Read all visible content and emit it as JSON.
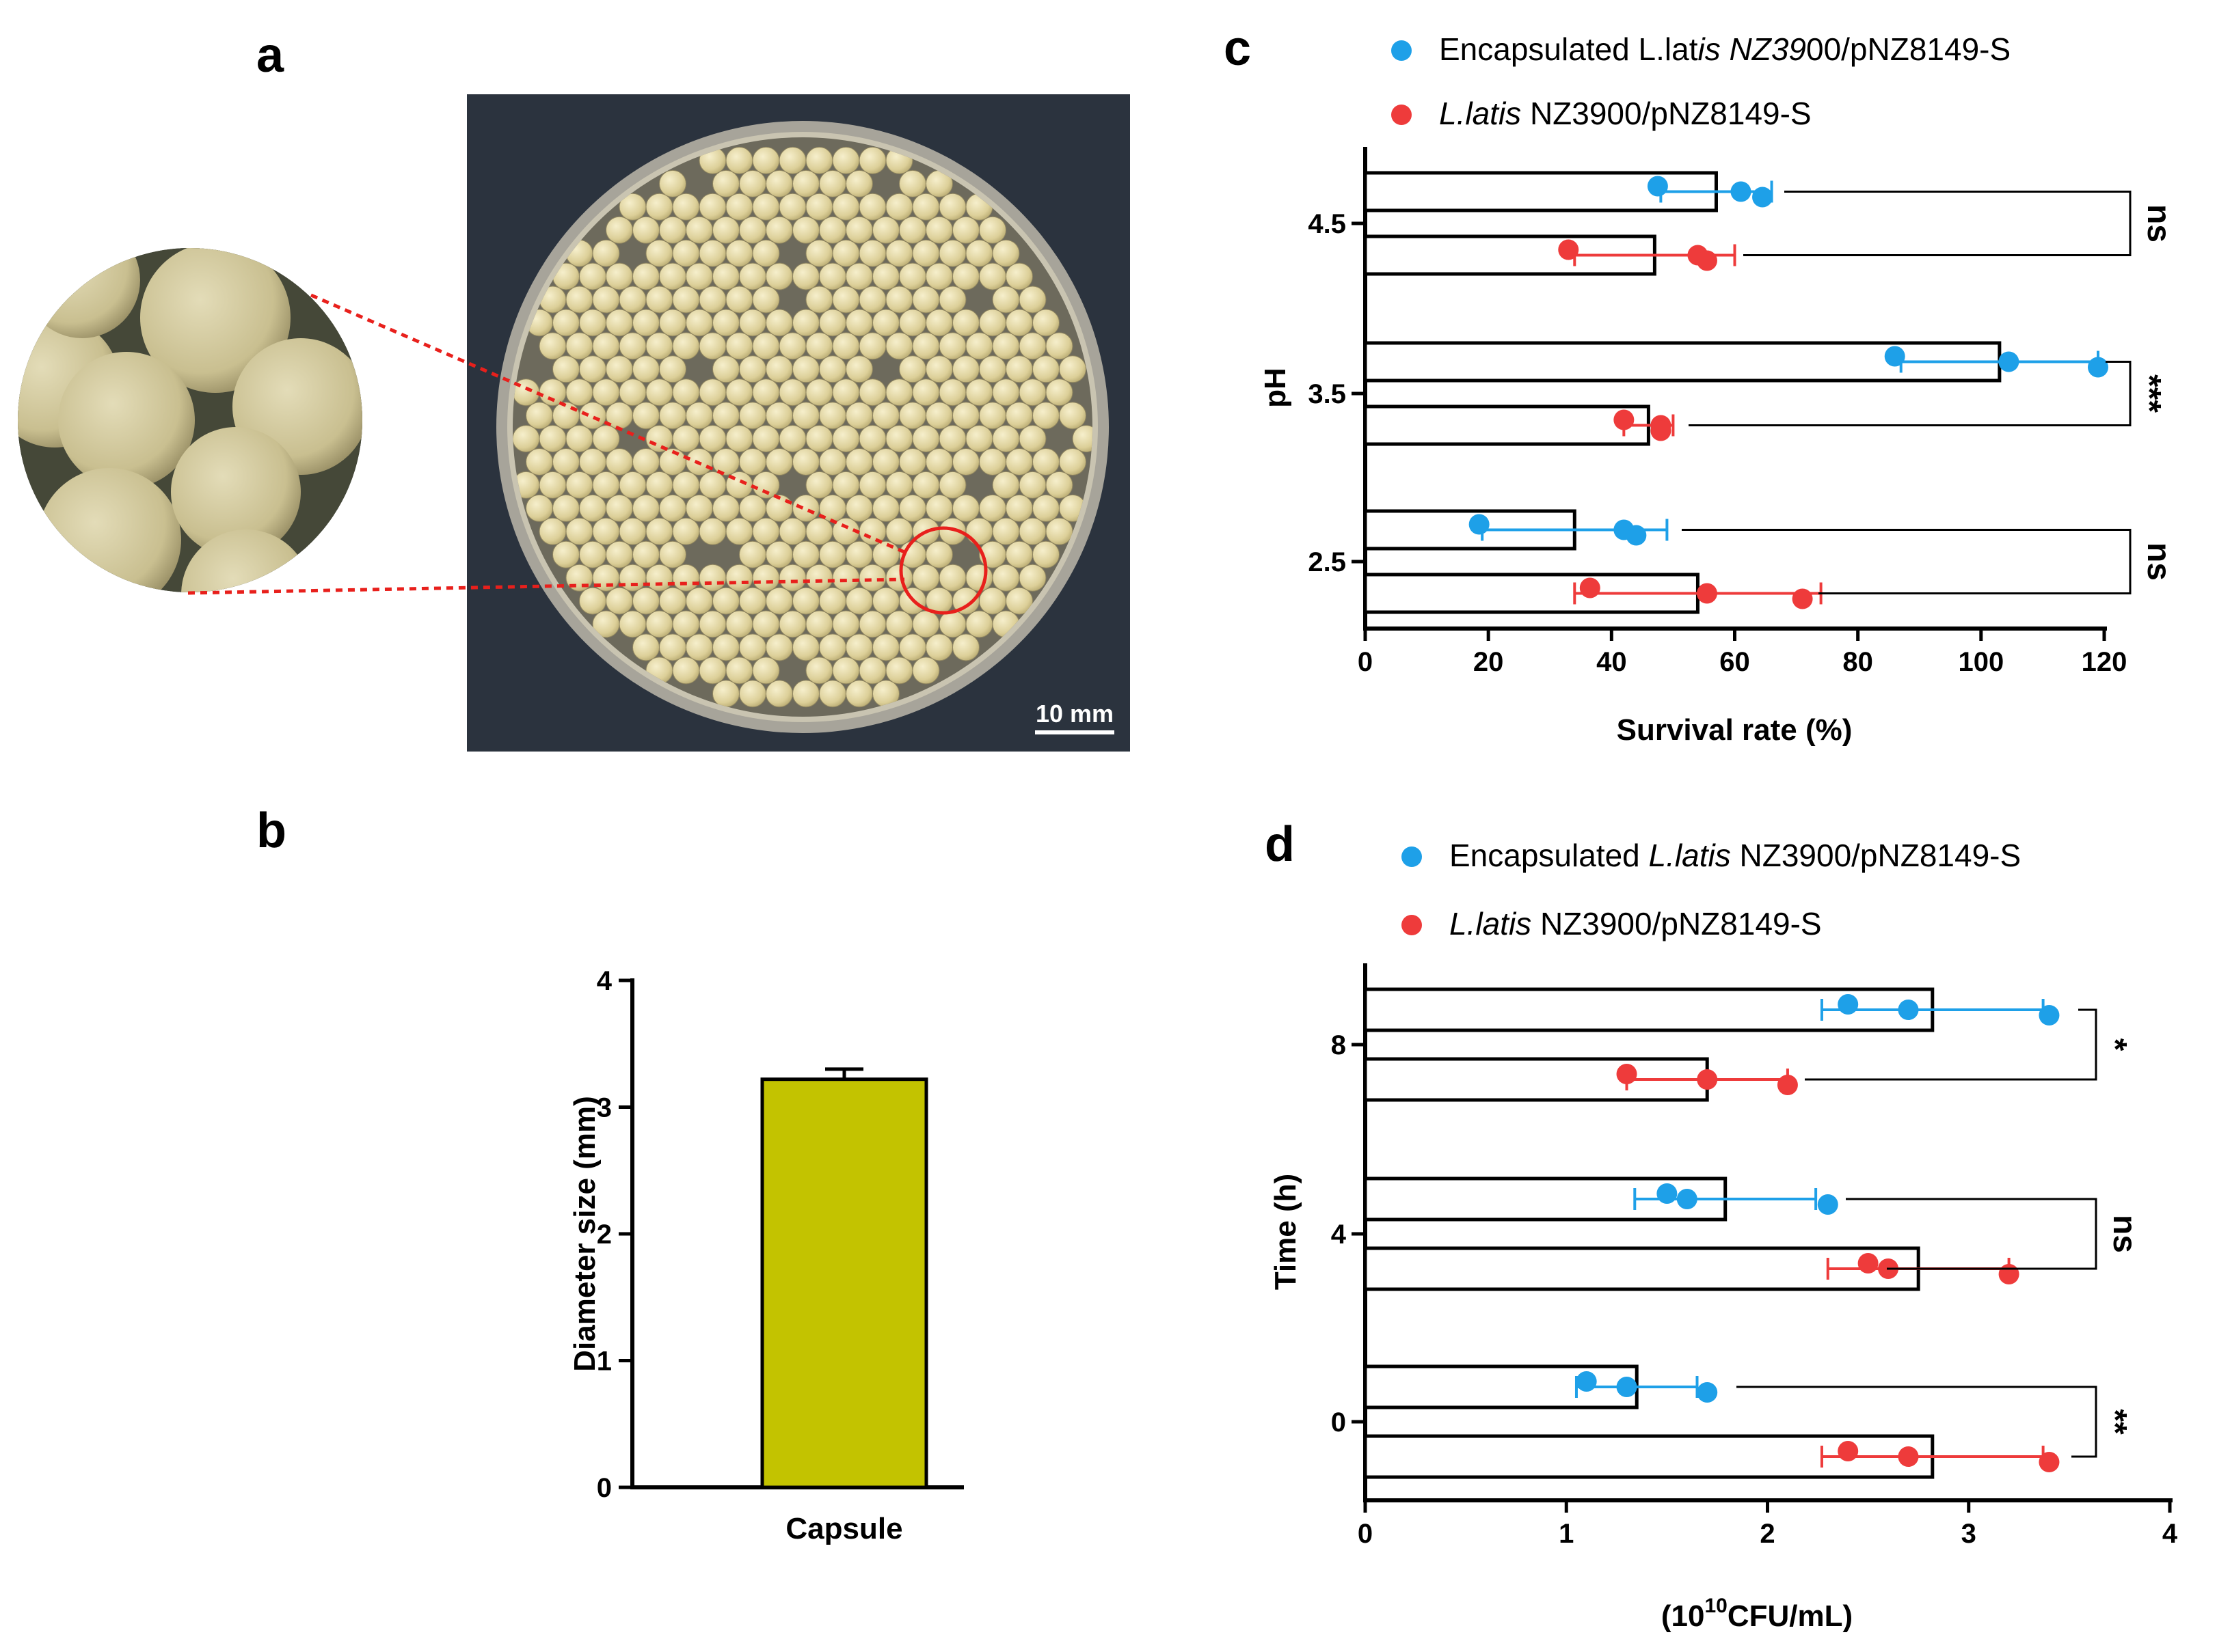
{
  "panels": {
    "a": "a",
    "b": "b",
    "c": "c",
    "d": "d"
  },
  "photo": {
    "scale_bar_label": "10 mm"
  },
  "colors": {
    "encapsulated": "#1ea0e8",
    "free": "#ee3b3b",
    "capsule_bar": "#c3c300",
    "zoom_line": "#e8201c",
    "photo_bg": "#2c3440",
    "bead": "#e6dcaa"
  },
  "chart_data": [
    {
      "id": "b",
      "type": "bar",
      "categories": [
        "Capsule"
      ],
      "values": [
        3.22
      ],
      "errors": [
        0.08
      ],
      "title": "",
      "xlabel": "",
      "ylabel": "Diameter size (mm)",
      "ylim": [
        0,
        4
      ],
      "yticks": [
        "0",
        "1",
        "2",
        "3",
        "4"
      ]
    },
    {
      "id": "c",
      "type": "bar",
      "orientation": "horizontal",
      "categories": [
        "4.5",
        "3.5",
        "2.5"
      ],
      "xlabel": "Survival rate (%)",
      "ylabel": "pH",
      "xlim": [
        0,
        120
      ],
      "xticks": [
        "0",
        "20",
        "40",
        "60",
        "80",
        "100",
        "120"
      ],
      "legend": [
        {
          "plain1": "Encapsulated L.lat",
          "italic": "is NZ39",
          "plain2": "00/pNZ8149-S"
        },
        {
          "plain1": "",
          "italic": "L.latis",
          "plain2": " NZ3900/pNZ8149-S"
        }
      ],
      "series": [
        {
          "name": "Encapsulated L.latis NZ3900/pNZ8149-S",
          "values": [
            57,
            103,
            34
          ],
          "errors": [
            9,
            16,
            15
          ],
          "points": [
            [
              47.5,
              61,
              64.5
            ],
            [
              86,
              104.5,
              119
            ],
            [
              18.5,
              42,
              44
            ]
          ]
        },
        {
          "name": "L.latis NZ3900/pNZ8149-S",
          "values": [
            47,
            46,
            54
          ],
          "errors": [
            13,
            4,
            20
          ],
          "points": [
            [
              33,
              54,
              55.5
            ],
            [
              42,
              48,
              48
            ],
            [
              36.5,
              55.5,
              71
            ]
          ]
        }
      ],
      "significance": [
        "ns",
        "***",
        "ns"
      ]
    },
    {
      "id": "d",
      "type": "bar",
      "orientation": "horizontal",
      "categories": [
        "8",
        "4",
        "0"
      ],
      "xlabel_base": "(10",
      "xlabel_sup": "10",
      "xlabel_rest": "CFU/mL)",
      "ylabel": "Time (h)",
      "xlim": [
        0,
        4
      ],
      "xticks": [
        "0",
        "1",
        "2",
        "3",
        "4"
      ],
      "legend": [
        {
          "plain1": "Encapsulated ",
          "italic": "L.latis",
          "plain2": " NZ3900/pNZ8149-S"
        },
        {
          "plain1": "",
          "italic": "L.latis",
          "plain2": " NZ3900/pNZ8149-S"
        }
      ],
      "series": [
        {
          "name": "Encapsulated L.latis NZ3900/pNZ8149-S",
          "values": [
            2.82,
            1.79,
            1.35
          ],
          "errors": [
            0.55,
            0.45,
            0.3
          ],
          "points": [
            [
              2.4,
              2.7,
              3.4
            ],
            [
              1.5,
              1.6,
              2.3
            ],
            [
              1.1,
              1.3,
              1.7
            ]
          ]
        },
        {
          "name": "L.latis NZ3900/pNZ8149-S",
          "values": [
            1.7,
            2.75,
            2.82
          ],
          "errors": [
            0.4,
            0.45,
            0.55
          ],
          "points": [
            [
              1.3,
              1.7,
              2.1
            ],
            [
              2.5,
              2.6,
              3.2
            ],
            [
              2.4,
              2.7,
              3.4
            ]
          ]
        }
      ],
      "significance": [
        "*",
        "ns",
        "**"
      ]
    }
  ]
}
